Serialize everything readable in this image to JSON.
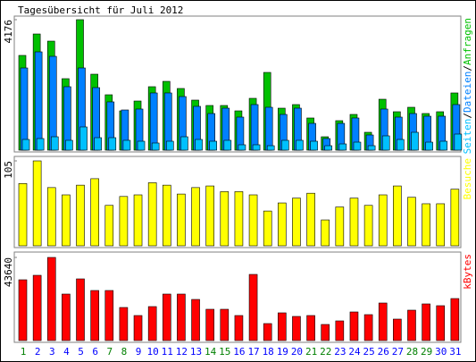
{
  "title": "Tagesübersicht für Juli 2012",
  "legend_separator": "/",
  "chart_data": [
    {
      "type": "bar",
      "ylim": [
        0,
        4176
      ],
      "yticks": [
        4176
      ],
      "series": [
        {
          "name": "Anfragen",
          "color": "#00c000",
          "values": [
            3032,
            3718,
            3489,
            2288,
            4176,
            2431,
            1773,
            1258,
            1573,
            2031,
            2202,
            1974,
            1602,
            1430,
            1430,
            1258,
            1659,
            2488,
            1344,
            1459,
            1030,
            429,
            944,
            1144,
            572,
            1630,
            1230,
            1373,
            1173,
            1230,
            1831
          ]
        },
        {
          "name": "Dateien",
          "color": "#0080ff",
          "values": [
            2631,
            3146,
            3003,
            2031,
            2631,
            2002,
            1545,
            1287,
            1316,
            1831,
            1831,
            1716,
            1402,
            1173,
            1344,
            1058,
            1459,
            1373,
            1144,
            1344,
            858,
            372,
            858,
            1030,
            486,
            1316,
            1058,
            1173,
            1087,
            1087,
            1459
          ]
        },
        {
          "name": "Seiten",
          "color": "#00c0ff",
          "values": [
            343,
            372,
            429,
            315,
            744,
            400,
            400,
            315,
            286,
            229,
            286,
            429,
            343,
            286,
            315,
            172,
            172,
            143,
            315,
            315,
            286,
            143,
            200,
            257,
            143,
            458,
            343,
            572,
            257,
            286,
            515
          ]
        }
      ]
    },
    {
      "type": "bar",
      "ylim": [
        0,
        105
      ],
      "yticks": [
        105
      ],
      "series": [
        {
          "name": "Besuche",
          "color": "#ffff00",
          "values": [
            77,
            105,
            72,
            63,
            75,
            83,
            50,
            61,
            63,
            78,
            75,
            64,
            72,
            74,
            67,
            67,
            63,
            43,
            53,
            59,
            65,
            32,
            48,
            59,
            50,
            63,
            74,
            60,
            52,
            52,
            70
          ]
        }
      ]
    },
    {
      "type": "bar",
      "ylim": [
        0,
        43640
      ],
      "yticks": [
        43640
      ],
      "categories": [
        "1",
        "2",
        "3",
        "4",
        "5",
        "6",
        "7",
        "8",
        "9",
        "10",
        "11",
        "12",
        "13",
        "14",
        "15",
        "16",
        "17",
        "18",
        "19",
        "20",
        "21",
        "22",
        "23",
        "24",
        "25",
        "26",
        "27",
        "28",
        "29",
        "30",
        "31"
      ],
      "category_colors": [
        "#008000",
        "#0000ff",
        "#0000ff",
        "#0000ff",
        "#0000ff",
        "#0000ff",
        "#008000",
        "#008000",
        "#0000ff",
        "#0000ff",
        "#0000ff",
        "#0000ff",
        "#0000ff",
        "#008000",
        "#008000",
        "#0000ff",
        "#0000ff",
        "#0000ff",
        "#0000ff",
        "#0000ff",
        "#008000",
        "#008000",
        "#0000ff",
        "#0000ff",
        "#0000ff",
        "#0000ff",
        "#0000ff",
        "#008000",
        "#008000",
        "#0000ff",
        "#0000ff"
      ],
      "series": [
        {
          "name": "kBytes",
          "color": "#ff0000",
          "values": [
            31907,
            34253,
            43640,
            24400,
            32376,
            26277,
            26277,
            17361,
            13138,
            17830,
            24400,
            24400,
            21584,
            16423,
            16423,
            13138,
            34722,
            8915,
            14546,
            12669,
            13138,
            8446,
            10323,
            15015,
            13607,
            19707,
            11261,
            15954,
            19238,
            18300,
            22053
          ]
        }
      ]
    }
  ]
}
